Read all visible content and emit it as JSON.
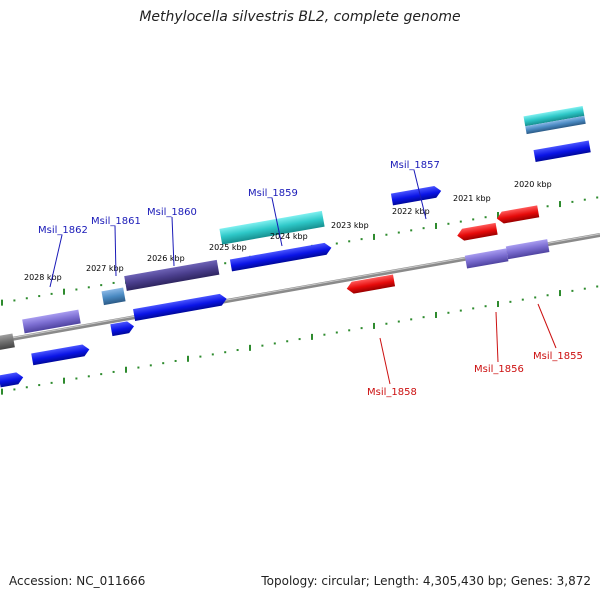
{
  "title": "Methylocella silvestris BL2, complete genome",
  "footer": {
    "accession": "Accession: NC_011666",
    "summary": "Topology: circular; Length: 4,305,430 bp; Genes: 3,872"
  },
  "colors": {
    "backbone": "#8c8c8c",
    "tick": "#2e8b2e",
    "forward_cds": "#0a14e6",
    "reverse_cds": "#e60a0a",
    "gene_teal": "#2ec8c8",
    "gene_slate": "#4a8ac2",
    "gene_indigo": "#4b3f8e",
    "gene_lavender": "#7a6cd0",
    "gene_grey": "#6e6e6e",
    "label_forward": "#1a1ab8",
    "label_reverse": "#cc1010"
  },
  "kbp_ticks": [
    {
      "label": "2028 kbp",
      "at": 2028
    },
    {
      "label": "2027 kbp",
      "at": 2027
    },
    {
      "label": "2026 kbp",
      "at": 2026
    },
    {
      "label": "2025 kbp",
      "at": 2025
    },
    {
      "label": "2024 kbp",
      "at": 2024
    },
    {
      "label": "2023 kbp",
      "at": 2023
    },
    {
      "label": "2022 kbp",
      "at": 2022
    },
    {
      "label": "2021 kbp",
      "at": 2021
    },
    {
      "label": "2020 kbp",
      "at": 2020
    }
  ],
  "gene_labels": [
    {
      "text": "Msil_1862",
      "strand": "forward"
    },
    {
      "text": "Msil_1861",
      "strand": "forward"
    },
    {
      "text": "Msil_1860",
      "strand": "forward"
    },
    {
      "text": "Msil_1859",
      "strand": "forward"
    },
    {
      "text": "Msil_1857",
      "strand": "forward"
    },
    {
      "text": "Msil_1858",
      "strand": "reverse"
    },
    {
      "text": "Msil_1856",
      "strand": "reverse"
    },
    {
      "text": "Msil_1855",
      "strand": "reverse"
    }
  ]
}
